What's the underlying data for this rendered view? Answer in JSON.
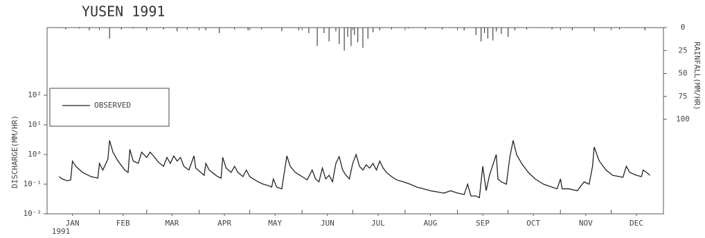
{
  "chart_data": {
    "type": "line",
    "title": "YUSEN    1991",
    "ylabel": "DISCHARGE(MM/HR)",
    "y2label": "RAINFALL(MM/HR)",
    "x_sublabel": "1991",
    "ylog": true,
    "y2_inverted": true,
    "xlim": [
      1,
      366
    ],
    "xticks": [
      {
        "value": 16,
        "label": "JAN"
      },
      {
        "value": 46,
        "label": "FEB"
      },
      {
        "value": 75,
        "label": "MAR"
      },
      {
        "value": 106,
        "label": "APR"
      },
      {
        "value": 136,
        "label": "MAY"
      },
      {
        "value": 167,
        "label": "JUN"
      },
      {
        "value": 197,
        "label": "JUL"
      },
      {
        "value": 228,
        "label": "AUG"
      },
      {
        "value": 259,
        "label": "SEP"
      },
      {
        "value": 289,
        "label": "OCT"
      },
      {
        "value": 320,
        "label": "NOV"
      },
      {
        "value": 350,
        "label": "DEC"
      }
    ],
    "xminorticks": [
      1,
      32,
      60,
      91,
      121,
      152,
      182,
      213,
      244,
      274,
      305,
      335,
      366
    ],
    "ylim": [
      0.01,
      19000
    ],
    "yticks": [
      {
        "value": 0.01,
        "label": "10⁻²"
      },
      {
        "value": 0.1,
        "label": "10⁻¹"
      },
      {
        "value": 1,
        "label": "10⁰"
      },
      {
        "value": 10,
        "label": "10¹"
      },
      {
        "value": 100,
        "label": "10²"
      }
    ],
    "y2lim": [
      0,
      203
    ],
    "y2ticks": [
      0,
      25,
      50,
      75,
      100
    ],
    "legend": "upper left",
    "series": [
      {
        "name": "OBSERVED",
        "type": "line",
        "color": "#222",
        "x": [
          8,
          10,
          13,
          15,
          16,
          18,
          22,
          27,
          31,
          32,
          34,
          37,
          38,
          40,
          43,
          47,
          49,
          50,
          52,
          55,
          57,
          60,
          62,
          64,
          67,
          70,
          72,
          74,
          76,
          78,
          80,
          82,
          85,
          88,
          89,
          92,
          94,
          95,
          97,
          100,
          102,
          104,
          105,
          107,
          110,
          112,
          114,
          117,
          119,
          121,
          124,
          126,
          129,
          132,
          134,
          135,
          137,
          140,
          143,
          145,
          148,
          152,
          155,
          158,
          160,
          162,
          164,
          166,
          168,
          170,
          172,
          174,
          176,
          178,
          180,
          182,
          184,
          186,
          188,
          190,
          192,
          194,
          196,
          198,
          200,
          202,
          205,
          208,
          212,
          216,
          220,
          224,
          228,
          232,
          236,
          240,
          244,
          248,
          250,
          252,
          255,
          257,
          259,
          261,
          263,
          265,
          267,
          268,
          270,
          273,
          275,
          277,
          279,
          282,
          286,
          290,
          295,
          300,
          303,
          305,
          306,
          310,
          315,
          319,
          322,
          324,
          325,
          328,
          332,
          336,
          340,
          342,
          344,
          346,
          350,
          353,
          354,
          356,
          358
        ],
        "values": [
          0.18,
          0.15,
          0.13,
          0.14,
          0.6,
          0.4,
          0.25,
          0.18,
          0.16,
          0.5,
          0.3,
          0.7,
          3.0,
          1.2,
          0.6,
          0.3,
          0.25,
          1.5,
          0.6,
          0.5,
          1.2,
          0.8,
          1.2,
          0.9,
          0.55,
          0.4,
          0.8,
          0.5,
          0.9,
          0.6,
          0.8,
          0.4,
          0.3,
          0.9,
          0.35,
          0.25,
          0.2,
          0.5,
          0.3,
          0.22,
          0.18,
          0.16,
          0.8,
          0.35,
          0.25,
          0.4,
          0.25,
          0.18,
          0.3,
          0.18,
          0.14,
          0.12,
          0.1,
          0.09,
          0.08,
          0.15,
          0.08,
          0.07,
          0.9,
          0.4,
          0.25,
          0.18,
          0.14,
          0.3,
          0.15,
          0.12,
          0.35,
          0.15,
          0.2,
          0.12,
          0.5,
          0.85,
          0.3,
          0.2,
          0.15,
          0.5,
          1.0,
          0.4,
          0.3,
          0.45,
          0.35,
          0.5,
          0.3,
          0.6,
          0.35,
          0.25,
          0.18,
          0.14,
          0.12,
          0.1,
          0.08,
          0.07,
          0.06,
          0.055,
          0.05,
          0.06,
          0.05,
          0.045,
          0.1,
          0.04,
          0.04,
          0.035,
          0.4,
          0.06,
          0.2,
          0.45,
          1.0,
          0.15,
          0.12,
          0.1,
          0.8,
          3.0,
          1.0,
          0.5,
          0.25,
          0.15,
          0.1,
          0.08,
          0.07,
          0.15,
          0.07,
          0.07,
          0.06,
          0.12,
          0.1,
          0.4,
          1.8,
          0.6,
          0.3,
          0.2,
          0.18,
          0.17,
          0.4,
          0.25,
          0.2,
          0.18,
          0.3,
          0.25,
          0.2
        ]
      },
      {
        "type": "bar",
        "axis": "y2",
        "color": "#444",
        "x": [
          12,
          20,
          26,
          38,
          45,
          52,
          60,
          70,
          78,
          84,
          95,
          103,
          112,
          120,
          128,
          140,
          150,
          156,
          161,
          165,
          168,
          172,
          174,
          177,
          179,
          181,
          183,
          185,
          188,
          191,
          194,
          198,
          205,
          215,
          225,
          235,
          248,
          255,
          258,
          260,
          262,
          265,
          267,
          270,
          274,
          278,
          285,
          300,
          312,
          325,
          340,
          355
        ],
        "values": [
          2,
          1,
          3,
          12,
          2,
          1,
          3,
          2,
          4,
          2,
          3,
          6,
          2,
          3,
          2,
          4,
          3,
          6,
          20,
          6,
          15,
          4,
          18,
          25,
          10,
          20,
          8,
          16,
          22,
          12,
          5,
          3,
          2,
          1,
          2,
          2,
          3,
          8,
          15,
          6,
          12,
          14,
          4,
          7,
          10,
          3,
          2,
          2,
          3,
          4,
          2,
          3
        ]
      }
    ]
  }
}
